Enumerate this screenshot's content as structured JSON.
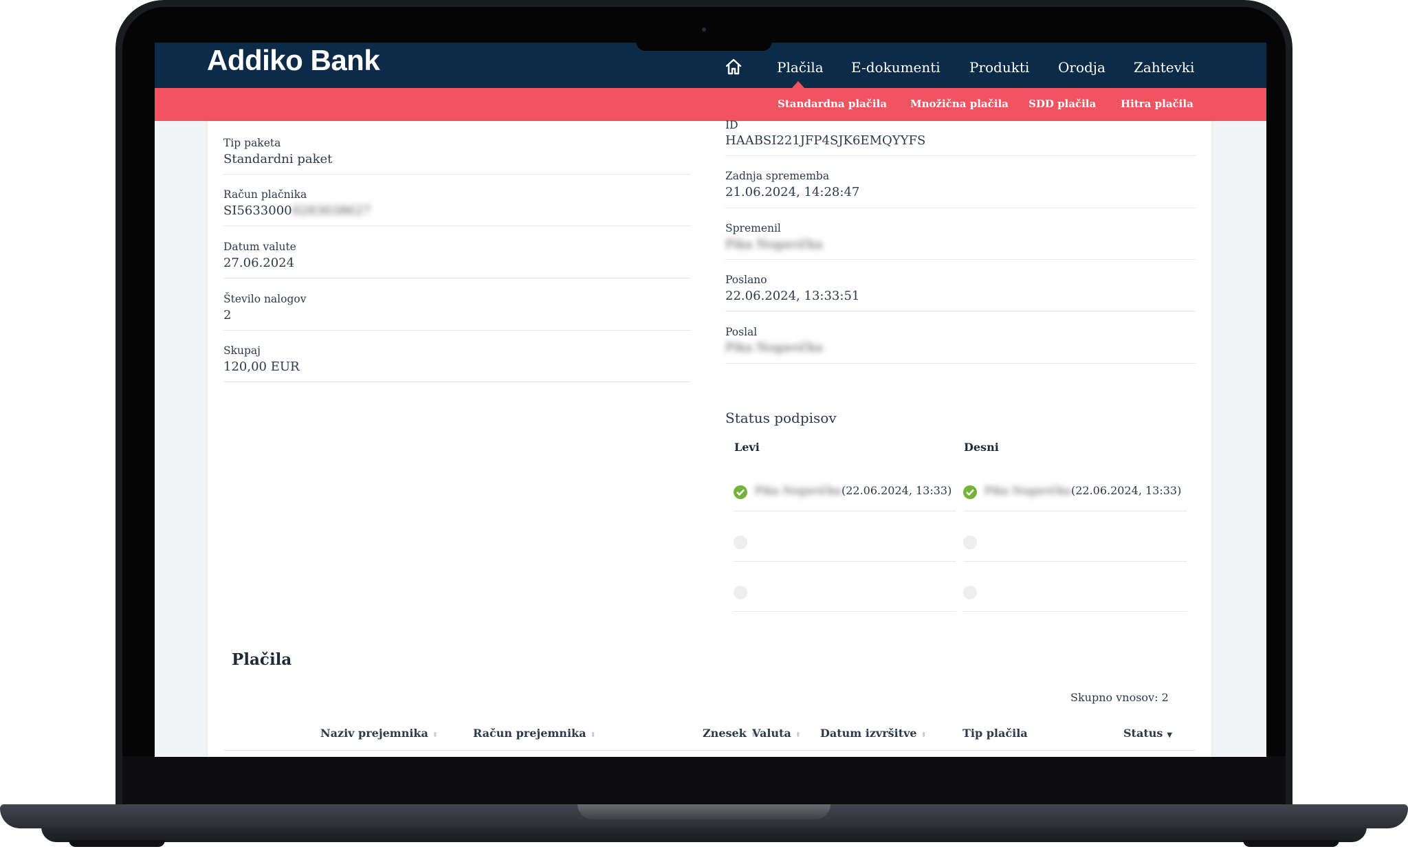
{
  "brand": {
    "name": "Addiko Bank"
  },
  "nav": {
    "home_icon": "home-icon",
    "items": [
      "Plačila",
      "E-dokumenti",
      "Produkti",
      "Orodja",
      "Zahtevki"
    ]
  },
  "subnav": {
    "items": [
      "Standardna plačila",
      "Množična plačila",
      "SDD plačila",
      "Hitra plačila"
    ]
  },
  "left_fields": [
    {
      "label": "Tip paketa",
      "value": "Standardni paket"
    },
    {
      "label": "Račun plačnika",
      "value": "SI5633000",
      "value_hidden": "0283038627"
    },
    {
      "label": "Datum valute",
      "value": "27.06.2024"
    },
    {
      "label": "Število nalogov",
      "value": "2"
    },
    {
      "label": "Skupaj",
      "value": "120,00 EUR"
    }
  ],
  "right_fields": [
    {
      "label": "ID",
      "value": "HAABSI221JFP4SJK6EMQYYFS"
    },
    {
      "label": "Zadnja sprememba",
      "value": "21.06.2024, 14:28:47"
    },
    {
      "label": "Spremenil",
      "value": "Pika Nogavička"
    },
    {
      "label": "Poslano",
      "value": "22.06.2024, 13:33:51"
    },
    {
      "label": "Poslal",
      "value": "Pika Nogavička"
    }
  ],
  "signatures": {
    "title": "Status podpisov",
    "left_title": "Levi",
    "right_title": "Desni",
    "left_signer": "Pika Nogavička",
    "left_time": "(22.06.2024, 13:33)",
    "right_signer": "Pika Nogavička",
    "right_time": "(22.06.2024, 13:33)"
  },
  "payments": {
    "title": "Plačila",
    "total_label": "Skupno vnosov:",
    "total_value": "2",
    "columns": [
      "Naziv prejemnika",
      "Račun prejemnika",
      "Znesek",
      "Valuta",
      "Datum izvršitve",
      "Tip plačila",
      "Status"
    ]
  },
  "colors": {
    "navy": "#0c2b49",
    "coral": "#f25360",
    "ok_green": "#74b43a"
  }
}
